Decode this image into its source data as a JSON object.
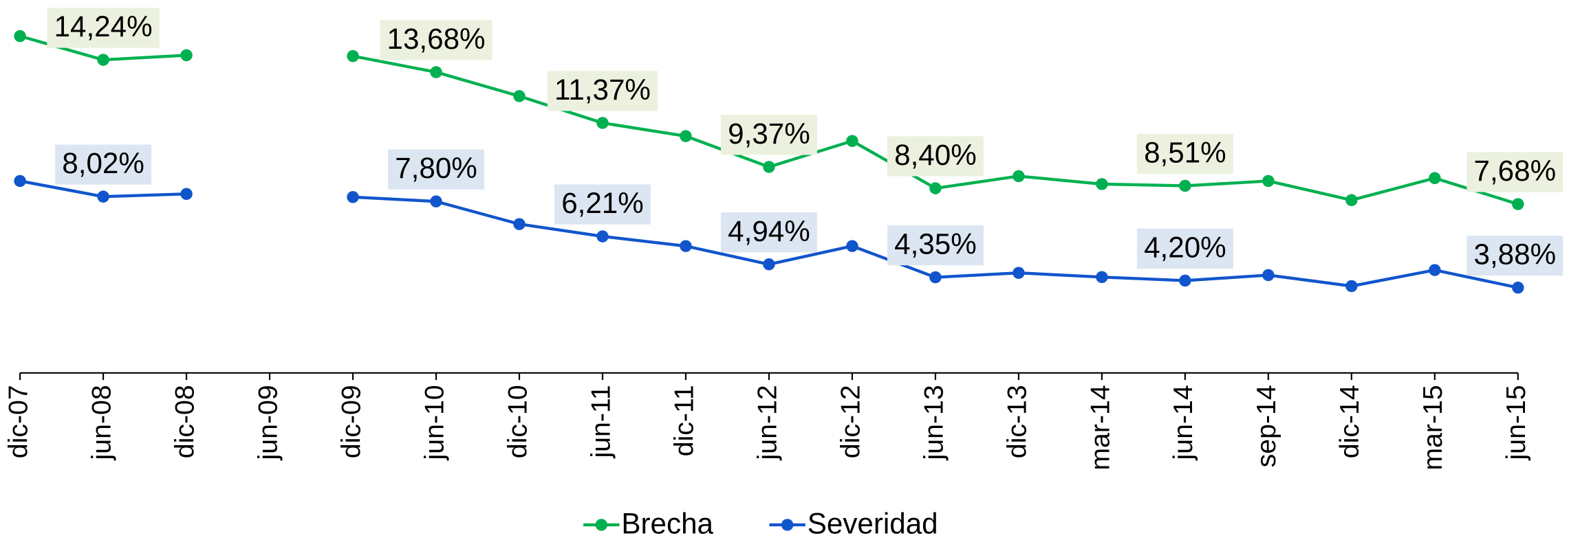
{
  "chart_data": {
    "type": "line",
    "categories": [
      "dic-07",
      "jun-08",
      "dic-08",
      "jun-09",
      "dic-09",
      "jun-10",
      "dic-10",
      "jun-11",
      "dic-11",
      "jun-12",
      "dic-12",
      "jun-13",
      "dic-13",
      "mar-14",
      "jun-14",
      "sep-14",
      "dic-14",
      "mar-15",
      "jun-15"
    ],
    "series": [
      {
        "name": "Brecha",
        "color": "#00b050",
        "label_bg": "#ebf1de",
        "values": [
          15.32,
          14.24,
          14.45,
          null,
          14.41,
          13.68,
          12.59,
          11.37,
          10.77,
          9.37,
          10.55,
          8.4,
          8.95,
          8.59,
          8.51,
          8.73,
          7.86,
          8.86,
          7.68
        ],
        "value_labels": [
          null,
          "14,24%",
          null,
          null,
          null,
          "13,68%",
          null,
          "11,37%",
          null,
          "9,37%",
          null,
          "8,40%",
          null,
          null,
          "8,51%",
          null,
          null,
          null,
          "7,68%"
        ]
      },
      {
        "name": "Severidad",
        "color": "#1155cc",
        "label_bg": "#dce6f2",
        "values": [
          8.73,
          8.02,
          8.14,
          null,
          8.0,
          7.8,
          6.77,
          6.21,
          5.77,
          4.94,
          5.77,
          4.35,
          4.55,
          4.36,
          4.2,
          4.45,
          3.95,
          4.68,
          3.88
        ],
        "value_labels": [
          null,
          "8,02%",
          null,
          null,
          null,
          "7,80%",
          null,
          "6,21%",
          null,
          "4,94%",
          null,
          "4,35%",
          null,
          null,
          "4,20%",
          null,
          null,
          null,
          "3,88%"
        ]
      }
    ],
    "legend": "bottom"
  }
}
